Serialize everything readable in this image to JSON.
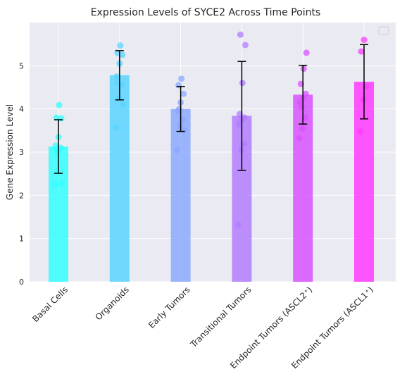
{
  "chart_data": {
    "type": "bar",
    "title": "Expression Levels of SYCE2 Across Time Points",
    "xlabel": "",
    "ylabel": "Gene Expression Level",
    "ylim": [
      0,
      6.0
    ],
    "yticks": [
      "0",
      "1",
      "2",
      "3",
      "4",
      "5"
    ],
    "grid": true,
    "legend": "top-right, empty",
    "categories": [
      "Basal Cells",
      "Organoids",
      "Early Tumors",
      "Transitional Tumors",
      "Endpoint Tumors (ASCL2⁺)",
      "Endpoint Tumors (ASCL1⁺)"
    ],
    "colors": [
      "#33ffff",
      "#5ad4ff",
      "#8ba9ff",
      "#b37cff",
      "#d952ff",
      "#ff3bff"
    ],
    "means": [
      3.13,
      4.78,
      4.0,
      3.84,
      4.33,
      4.63
    ],
    "errors": [
      0.62,
      0.57,
      0.52,
      1.26,
      0.68,
      0.86
    ],
    "points": [
      [
        2.25,
        3.0,
        3.1,
        3.15,
        3.35,
        3.78,
        3.8,
        4.09,
        2.28,
        3.05
      ],
      [
        3.57,
        4.25,
        4.55,
        4.75,
        5.05,
        5.25,
        5.3,
        5.47,
        4.1,
        4.6
      ],
      [
        3.05,
        3.6,
        3.75,
        3.95,
        4.15,
        4.35,
        4.55,
        4.7,
        3.5,
        4.0
      ],
      [
        1.32,
        3.05,
        3.2,
        3.65,
        3.75,
        3.8,
        3.88,
        4.6,
        5.48,
        5.72
      ],
      [
        3.32,
        3.55,
        3.8,
        4.15,
        4.25,
        4.35,
        4.58,
        4.93,
        5.3,
        4.05
      ],
      [
        3.48,
        4.22,
        4.52,
        5.33,
        5.6
      ]
    ]
  }
}
